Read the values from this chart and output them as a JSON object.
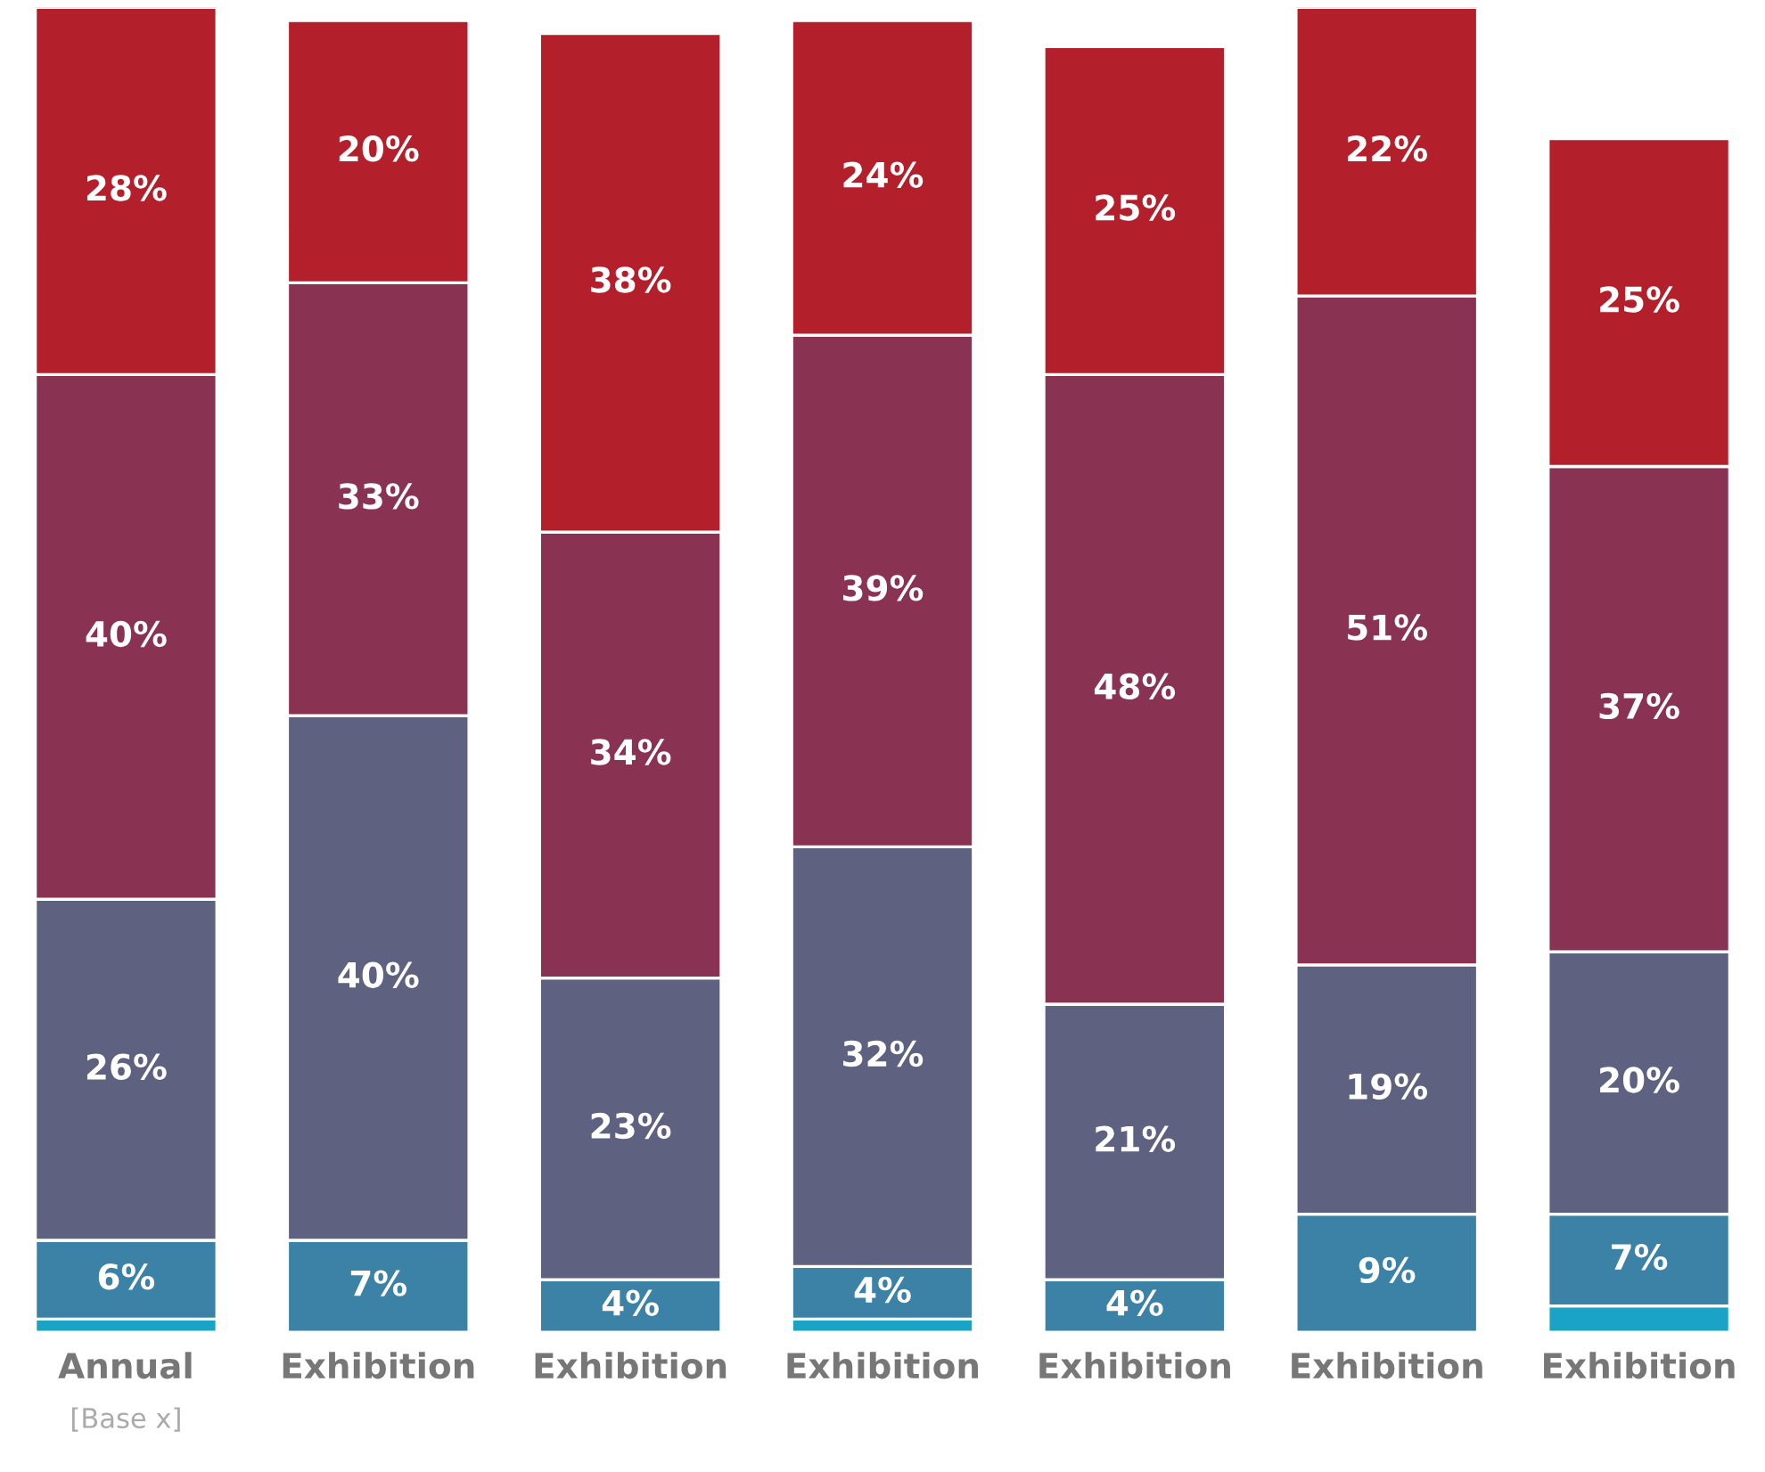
{
  "chart_data": {
    "type": "bar",
    "stacked": true,
    "categories": [
      "Annual",
      "Exhibition",
      "Exhibition",
      "Exhibition",
      "Exhibition",
      "Exhibition",
      "Exhibition"
    ],
    "series": [
      {
        "color": "#1ba3c6",
        "values": [
          1,
          0,
          0,
          1,
          0,
          0,
          2
        ],
        "value_labels": [
          null,
          null,
          null,
          null,
          null,
          null,
          null
        ]
      },
      {
        "color": "#3b82a6",
        "values": [
          6,
          7,
          4,
          4,
          4,
          9,
          7
        ],
        "value_labels": [
          "6%",
          "7%",
          "4%",
          "4%",
          "4%",
          "9%",
          "7%"
        ]
      },
      {
        "color": "#5f6180",
        "values": [
          26,
          40,
          23,
          32,
          21,
          19,
          20
        ],
        "value_labels": [
          "26%",
          "40%",
          "23%",
          "32%",
          "21%",
          "19%",
          "20%"
        ]
      },
      {
        "color": "#8a3252",
        "values": [
          40,
          33,
          34,
          39,
          48,
          51,
          37
        ],
        "value_labels": [
          "40%",
          "33%",
          "34%",
          "39%",
          "48%",
          "51%",
          "37%"
        ]
      },
      {
        "color": "#b31f2b",
        "values": [
          28,
          20,
          38,
          24,
          25,
          22,
          25
        ],
        "value_labels": [
          "28%",
          "20%",
          "38%",
          "24%",
          "25%",
          "22%",
          "25%"
        ]
      }
    ],
    "annotations": [
      "[Base x]"
    ]
  }
}
